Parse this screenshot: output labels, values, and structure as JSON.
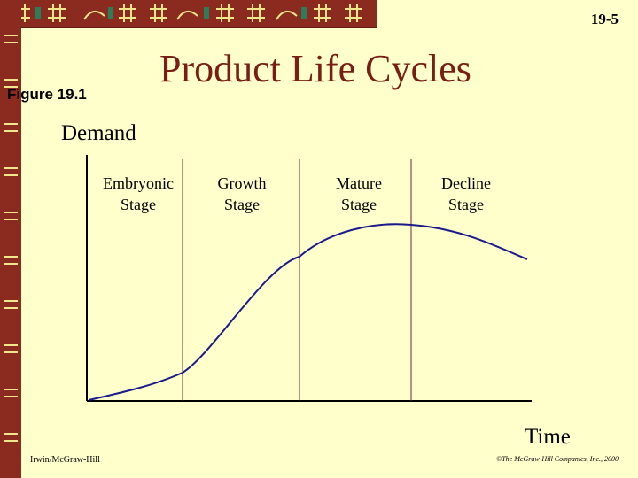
{
  "slide": {
    "number": "19-5",
    "title": "Product Life Cycles",
    "figure_label": "Figure 19.1"
  },
  "diagram": {
    "y_axis_label": "Demand",
    "x_axis_label": "Time",
    "stages": [
      {
        "label": "Embryonic\nStage"
      },
      {
        "label": "Growth\nStage"
      },
      {
        "label": "Mature\nStage"
      },
      {
        "label": "Decline\nStage"
      }
    ],
    "colors": {
      "curve": "#1a1a8c",
      "axis": "#000000",
      "divider": "#7a1e3c",
      "title": "#7a1e14",
      "background": "#ffffcc",
      "border": "#8b2a1e"
    }
  },
  "footer": {
    "publisher": "Irwin/McGraw-Hill",
    "copyright": "©The McGraw-Hill Companies, Inc., 2000"
  }
}
